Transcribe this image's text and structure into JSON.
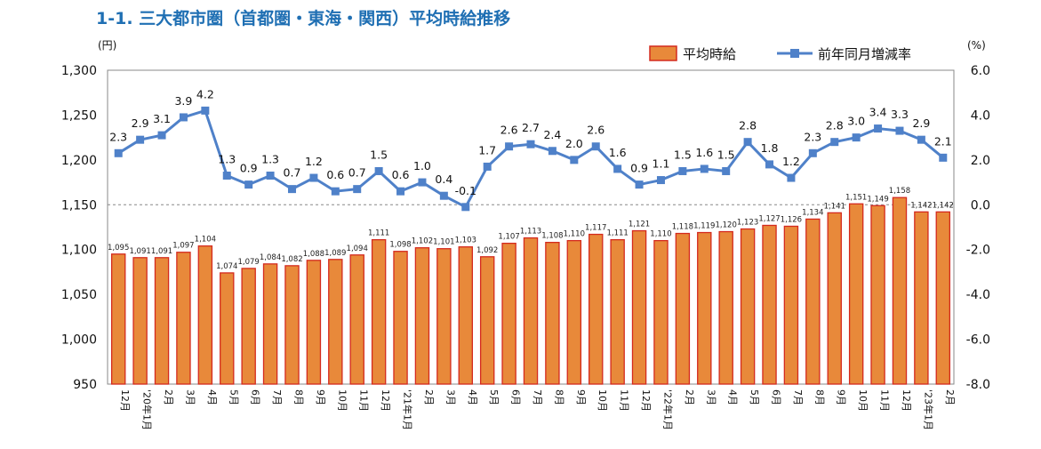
{
  "title": "1-1. 三大都市圏（首都圏・東海・関西）平均時給推移",
  "chart_data": {
    "type": "bar+line",
    "categories": [
      "12月",
      "'20年1月",
      "2月",
      "3月",
      "4月",
      "5月",
      "6月",
      "7月",
      "8月",
      "9月",
      "10月",
      "11月",
      "12月",
      "'21年1月",
      "2月",
      "3月",
      "4月",
      "5月",
      "6月",
      "7月",
      "8月",
      "9月",
      "10月",
      "11月",
      "12月",
      "'22年1月",
      "2月",
      "3月",
      "4月",
      "5月",
      "6月",
      "7月",
      "8月",
      "9月",
      "10月",
      "11月",
      "12月",
      "'23年1月",
      "2月"
    ],
    "series": [
      {
        "name": "平均時給",
        "type": "bar",
        "axis": "left",
        "values": [
          1095,
          1091,
          1091,
          1097,
          1104,
          1074,
          1079,
          1084,
          1082,
          1088,
          1089,
          1094,
          1111,
          1098,
          1102,
          1101,
          1103,
          1092,
          1107,
          1113,
          1108,
          1110,
          1117,
          1111,
          1121,
          1110,
          1118,
          1119,
          1120,
          1123,
          1127,
          1126,
          1134,
          1141,
          1151,
          1149,
          1158,
          1142,
          1142
        ],
        "labels": [
          "1,095",
          "1,091",
          "1,091",
          "1,097",
          "1,104",
          "1,074",
          "1,079",
          "1,084",
          "1,082",
          "1,088",
          "1,089",
          "1,094",
          "1,111",
          "1,098",
          "1,102",
          "1,101",
          "1,103",
          "1,092",
          "1,107",
          "1,113",
          "1,108",
          "1,110",
          "1,117",
          "1,111",
          "1,121",
          "1,110",
          "1,118",
          "1,119",
          "1,120",
          "1,123",
          "1,127",
          "1,126",
          "1,134",
          "1,141",
          "1,151",
          "1,149",
          "1,158",
          "1,142",
          "1,142"
        ]
      },
      {
        "name": "前年同月増減率",
        "type": "line",
        "axis": "right",
        "values": [
          2.3,
          2.9,
          3.1,
          3.9,
          4.2,
          1.3,
          0.9,
          1.3,
          0.7,
          1.2,
          0.6,
          0.7,
          1.5,
          0.6,
          1.0,
          0.4,
          -0.1,
          1.7,
          2.6,
          2.7,
          2.4,
          2.0,
          2.6,
          1.6,
          0.9,
          1.1,
          1.5,
          1.6,
          1.5,
          2.8,
          1.8,
          1.2,
          2.3,
          2.8,
          3.0,
          3.4,
          3.3,
          2.9,
          2.1
        ]
      }
    ],
    "left_axis": {
      "unit": "(円)",
      "ylim": [
        950,
        1300
      ],
      "ticks": [
        "950",
        "1,000",
        "1,050",
        "1,100",
        "1,150",
        "1,200",
        "1,250",
        "1,300"
      ]
    },
    "right_axis": {
      "unit": "(%)",
      "ylim": [
        -8.0,
        6.0
      ],
      "ticks": [
        "-8.0",
        "-6.0",
        "-4.0",
        "-2.0",
        "0.0",
        "2.0",
        "4.0",
        "6.0"
      ]
    },
    "zero_line": "dashed",
    "legend_position": "top-right",
    "colors": {
      "bar_fill": "#e8893a",
      "bar_stroke": "#d42a1e",
      "line": "#4f81c9",
      "title": "#1f6fb3"
    }
  }
}
